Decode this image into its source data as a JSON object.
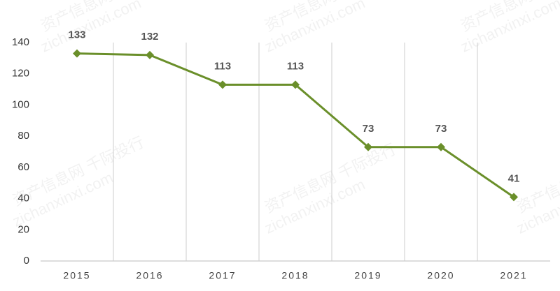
{
  "chart_data": {
    "type": "line",
    "categories": [
      "2015",
      "2016",
      "2017",
      "2018",
      "2019",
      "2020",
      "2021"
    ],
    "values": [
      133,
      132,
      113,
      113,
      73,
      73,
      41
    ],
    "color": "#6a8f2a",
    "ylim": [
      0,
      140
    ],
    "yticks": [
      0,
      20,
      40,
      60,
      80,
      100,
      120,
      140
    ],
    "grid": true,
    "watermarks": [
      "资产信息网 千际投行",
      "zichanxinxi.com"
    ]
  }
}
